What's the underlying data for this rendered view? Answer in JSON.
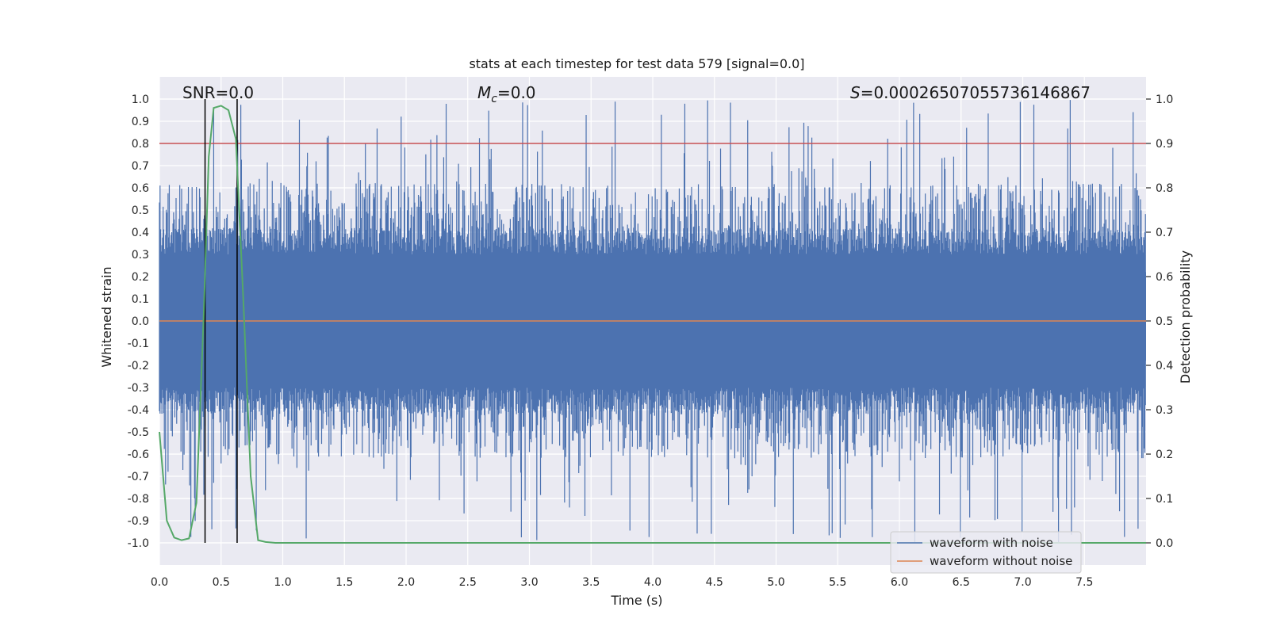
{
  "chart_data": {
    "type": "line",
    "title": "stats at each timestep for test data 579 [signal=0.0]",
    "xlabel": "Time (s)",
    "ylabel": "Whitened strain",
    "y2label": "Detection probability",
    "xlim": [
      0.0,
      8.0
    ],
    "ylim": [
      -1.1,
      1.1
    ],
    "y2lim": [
      -0.05,
      1.05
    ],
    "xticks": [
      "0.0",
      "0.5",
      "1.0",
      "1.5",
      "2.0",
      "2.5",
      "3.0",
      "3.5",
      "4.0",
      "4.5",
      "5.0",
      "5.5",
      "6.0",
      "6.5",
      "7.0",
      "7.5"
    ],
    "yticks": [
      "1.0",
      "0.9",
      "0.8",
      "0.7",
      "0.6",
      "0.5",
      "0.4",
      "0.3",
      "0.2",
      "0.1",
      "0.0",
      "-0.1",
      "-0.2",
      "-0.3",
      "-0.4",
      "-0.5",
      "-0.6",
      "-0.7",
      "-0.8",
      "-0.9",
      "-1.0"
    ],
    "y2ticks": [
      "1.0",
      "0.9",
      "0.8",
      "0.7",
      "0.6",
      "0.5",
      "0.4",
      "0.3",
      "0.2",
      "0.1",
      "0.0"
    ],
    "annotations": {
      "snr": "SNR=0.0",
      "mc_symbol": "M",
      "mc_sub": "c",
      "mc_value": "=0.0",
      "s_symbol": "S",
      "s_value": "=0.00026507055736146867"
    },
    "threshold": 0.9,
    "vlines": [
      0.37,
      0.63
    ],
    "series": [
      {
        "name": "waveform with noise",
        "color": "#4c72b0",
        "axis": "left",
        "description": "dense noise, amplitude mostly within ±0.6 with spikes up to ±1.0"
      },
      {
        "name": "waveform without noise",
        "color": "#dd8452",
        "axis": "left",
        "constant": 0.0
      },
      {
        "name": "detection probability",
        "color": "#55a868",
        "axis": "right",
        "x": [
          0.0,
          0.06,
          0.12,
          0.18,
          0.24,
          0.3,
          0.36,
          0.4,
          0.44,
          0.5,
          0.56,
          0.62,
          0.68,
          0.74,
          0.8,
          0.86,
          0.94,
          8.0
        ],
        "values": [
          0.25,
          0.05,
          0.012,
          0.006,
          0.01,
          0.09,
          0.52,
          0.87,
          0.98,
          0.985,
          0.975,
          0.91,
          0.55,
          0.15,
          0.006,
          0.002,
          0.0,
          0.0
        ]
      }
    ],
    "legend": [
      "waveform with noise",
      "waveform without noise"
    ],
    "legend_position": "bottom-right",
    "grid": true
  }
}
